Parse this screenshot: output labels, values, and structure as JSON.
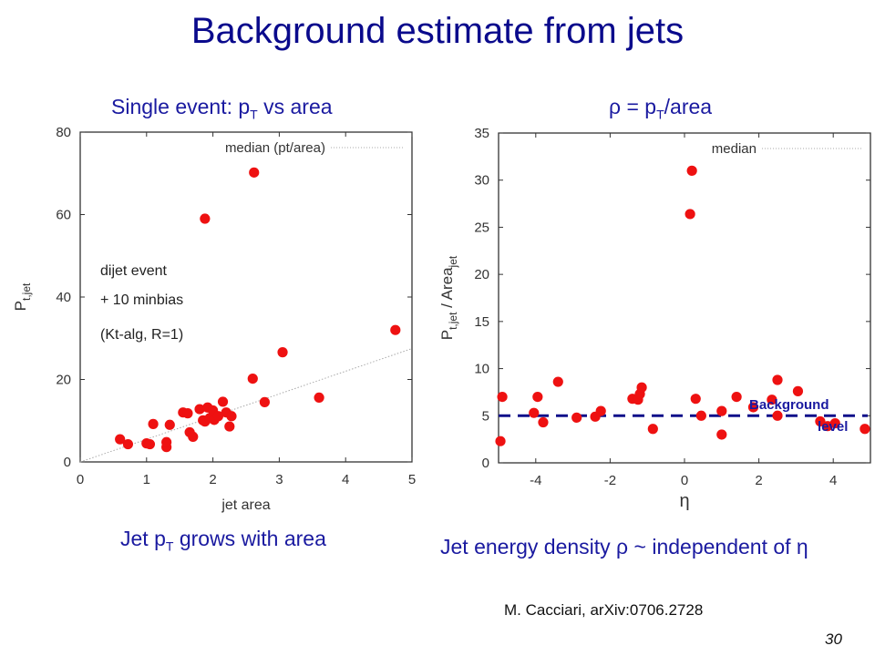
{
  "slide": {
    "title": "Background estimate from jets",
    "left_subtitle": "Single event: p",
    "left_subtitle_sub": "T",
    "left_subtitle_tail": " vs area",
    "right_subtitle": "ρ = p",
    "right_subtitle_sub": "T",
    "right_subtitle_tail": "/area",
    "left_caption": "Jet p",
    "left_caption_sub": "T",
    "left_caption_tail": " grows with area",
    "right_caption": "Jet energy density ρ ~ independent of η",
    "citation": "M. Cacciari, arXiv:0706.2728",
    "page_number": "30"
  },
  "colors": {
    "title": "#0a0a8c",
    "caption": "#1a1aa0",
    "points": "#ee1111",
    "background_line": "#10108a",
    "median_line": "#aaaaaa"
  },
  "chart_data": [
    {
      "type": "scatter",
      "xlabel": "jet area",
      "ylabel_main": "P",
      "ylabel_sub": "t,jet",
      "xlim": [
        0,
        5
      ],
      "ylim": [
        0,
        80
      ],
      "xticks": [
        0,
        1,
        2,
        3,
        4,
        5
      ],
      "yticks": [
        0,
        20,
        40,
        60,
        80
      ],
      "legend": "median (pt/area)",
      "annotation_lines": [
        "dijet event",
        "+ 10 minbias",
        "(Kt-alg, R=1)"
      ],
      "median_line": {
        "x": [
          0,
          5
        ],
        "y": [
          0,
          27.5
        ]
      },
      "points": [
        {
          "x": 0.6,
          "y": 5.5
        },
        {
          "x": 0.72,
          "y": 4.3
        },
        {
          "x": 1.0,
          "y": 4.5
        },
        {
          "x": 1.05,
          "y": 4.3
        },
        {
          "x": 1.1,
          "y": 9.2
        },
        {
          "x": 1.3,
          "y": 3.6
        },
        {
          "x": 1.3,
          "y": 4.8
        },
        {
          "x": 1.35,
          "y": 9.0
        },
        {
          "x": 1.55,
          "y": 12.0
        },
        {
          "x": 1.62,
          "y": 11.8
        },
        {
          "x": 1.65,
          "y": 7.2
        },
        {
          "x": 1.7,
          "y": 6.1
        },
        {
          "x": 1.8,
          "y": 12.8
        },
        {
          "x": 1.85,
          "y": 10.1
        },
        {
          "x": 1.88,
          "y": 9.8
        },
        {
          "x": 1.92,
          "y": 13.2
        },
        {
          "x": 1.95,
          "y": 10.6
        },
        {
          "x": 2.0,
          "y": 12.5
        },
        {
          "x": 2.02,
          "y": 10.2
        },
        {
          "x": 2.08,
          "y": 11.1
        },
        {
          "x": 2.15,
          "y": 14.6
        },
        {
          "x": 2.2,
          "y": 12.0
        },
        {
          "x": 2.25,
          "y": 8.6
        },
        {
          "x": 2.28,
          "y": 11.1
        },
        {
          "x": 1.88,
          "y": 59.0
        },
        {
          "x": 2.62,
          "y": 70.2
        },
        {
          "x": 2.6,
          "y": 20.2
        },
        {
          "x": 2.78,
          "y": 14.5
        },
        {
          "x": 3.05,
          "y": 26.6
        },
        {
          "x": 3.6,
          "y": 15.6
        },
        {
          "x": 4.75,
          "y": 32.0
        }
      ]
    },
    {
      "type": "scatter",
      "xlabel": "η",
      "ylabel_main": "P",
      "ylabel_sub1": "t,jet",
      "ylabel_mid": " / Area",
      "ylabel_sub2": "jet",
      "xlim": [
        -5,
        5
      ],
      "ylim": [
        0,
        35
      ],
      "xticks": [
        -4,
        -2,
        0,
        2,
        4
      ],
      "yticks": [
        0,
        5,
        10,
        15,
        20,
        25,
        30,
        35
      ],
      "legend": "median",
      "annotation_line1": "Background",
      "annotation_line2": "level",
      "background_level": 5,
      "points": [
        {
          "x": -4.95,
          "y": 2.3
        },
        {
          "x": -4.9,
          "y": 7.0
        },
        {
          "x": -4.05,
          "y": 5.3
        },
        {
          "x": -3.95,
          "y": 7.0
        },
        {
          "x": -3.8,
          "y": 4.3
        },
        {
          "x": -3.4,
          "y": 8.6
        },
        {
          "x": -2.9,
          "y": 4.8
        },
        {
          "x": -2.4,
          "y": 4.9
        },
        {
          "x": -2.25,
          "y": 5.5
        },
        {
          "x": -1.4,
          "y": 6.8
        },
        {
          "x": -1.25,
          "y": 6.7
        },
        {
          "x": -1.2,
          "y": 7.3
        },
        {
          "x": -1.15,
          "y": 8.0
        },
        {
          "x": -0.85,
          "y": 3.6
        },
        {
          "x": 0.15,
          "y": 26.4
        },
        {
          "x": 0.2,
          "y": 31.0
        },
        {
          "x": 0.3,
          "y": 6.8
        },
        {
          "x": 0.45,
          "y": 5.0
        },
        {
          "x": 1.0,
          "y": 5.5
        },
        {
          "x": 1.0,
          "y": 3.0
        },
        {
          "x": 1.4,
          "y": 7.0
        },
        {
          "x": 1.85,
          "y": 5.9
        },
        {
          "x": 2.35,
          "y": 6.7
        },
        {
          "x": 2.5,
          "y": 8.8
        },
        {
          "x": 2.5,
          "y": 5.0
        },
        {
          "x": 3.05,
          "y": 7.6
        },
        {
          "x": 3.65,
          "y": 4.4
        },
        {
          "x": 3.85,
          "y": 3.9
        },
        {
          "x": 4.05,
          "y": 4.2
        },
        {
          "x": 4.85,
          "y": 3.6
        }
      ]
    }
  ]
}
